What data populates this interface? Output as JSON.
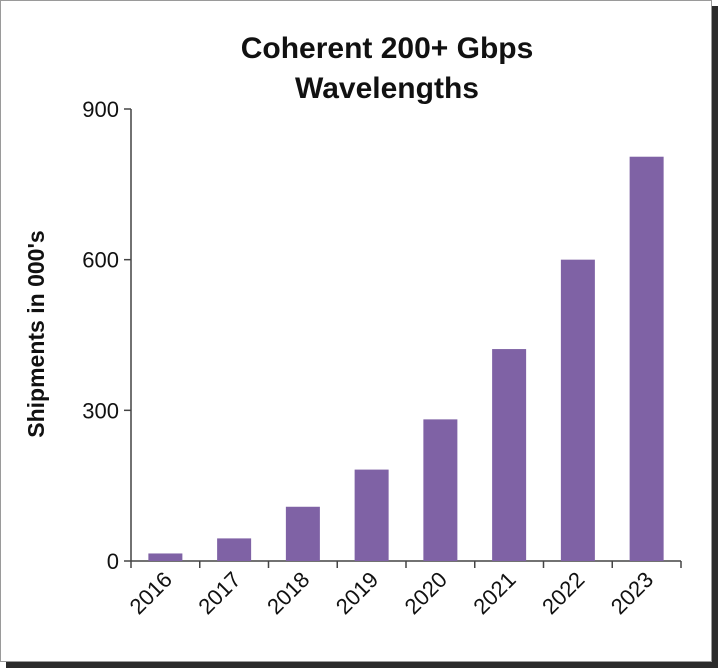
{
  "chart_data": {
    "type": "bar",
    "title_lines": [
      "Coherent 200+ Gbps",
      "Wavelengths"
    ],
    "ylabel": "Shipments in 000's",
    "xlabel": "",
    "categories": [
      "2016",
      "2017",
      "2018",
      "2019",
      "2020",
      "2021",
      "2022",
      "2023"
    ],
    "values": [
      15,
      45,
      108,
      182,
      282,
      422,
      600,
      805
    ],
    "ylim": [
      0,
      900
    ],
    "yticks": [
      0,
      300,
      600,
      900
    ],
    "bar_color": "#7f62a5",
    "grid": false,
    "legend": "none"
  }
}
